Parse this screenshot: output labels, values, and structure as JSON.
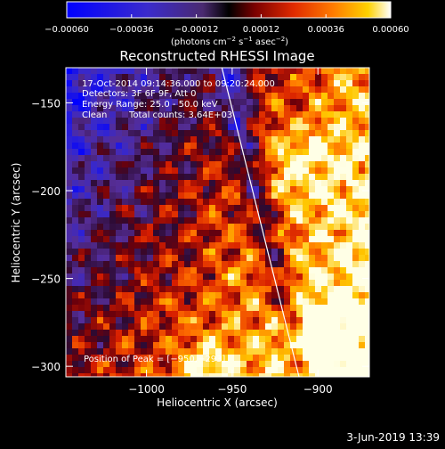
{
  "chart_data": {
    "type": "heatmap",
    "title": "Reconstructed RHESSI Image",
    "xlabel": "Heliocentric X (arcsec)",
    "ylabel": "Heliocentric Y (arcsec)",
    "xlim": [
      -1047,
      -870
    ],
    "ylim": [
      -306,
      -130
    ],
    "x_ticks": [
      -1000,
      -950,
      -900
    ],
    "x_tick_labels": [
      "−1000",
      "−950",
      "−900"
    ],
    "y_ticks": [
      -150,
      -200,
      -250,
      -300
    ],
    "y_tick_labels": [
      "−150",
      "−200",
      "−250",
      "−300"
    ],
    "colorbar": {
      "range": [
        -0.0006,
        0.0006
      ],
      "ticks": [
        -0.0006,
        -0.00036,
        -0.00012,
        0.00012,
        0.00036,
        0.0006
      ],
      "tick_labels": [
        "−0.00060",
        "−0.00036",
        "−0.00012",
        "0.00012",
        "0.00036",
        "0.00060"
      ],
      "unit_prefix": "(photons cm",
      "unit_sup1": "−2",
      "unit_mid": " s",
      "unit_sup2": "−1",
      "unit_mid2": " asec",
      "unit_sup3": "−2",
      "unit_suffix": ")",
      "colors": [
        "#0000ff",
        "#3a2cc8",
        "#5a3a9a",
        "#000000",
        "#8a0000",
        "#e03000",
        "#ff8000",
        "#ffd000",
        "#ffffff"
      ]
    },
    "peak": [
      -950,
      -293
    ],
    "annotations": {
      "time": "17-Oct-2014 09:14:36.000 to 09:20:24.000",
      "detectors": "Detectors: 3F 6F 9F, Att 0",
      "energy": "Energy Range: 25.0 - 50.0 keV",
      "clean_label": "Clean",
      "counts": "Total counts: 3.64E+03",
      "peak_text": "Position of Peak = [−950,−293]"
    },
    "limb_line": [
      [
        -956,
        -130
      ],
      [
        -911,
        -306
      ]
    ]
  },
  "footer": {
    "timestamp": "3-Jun-2019 13:39"
  }
}
